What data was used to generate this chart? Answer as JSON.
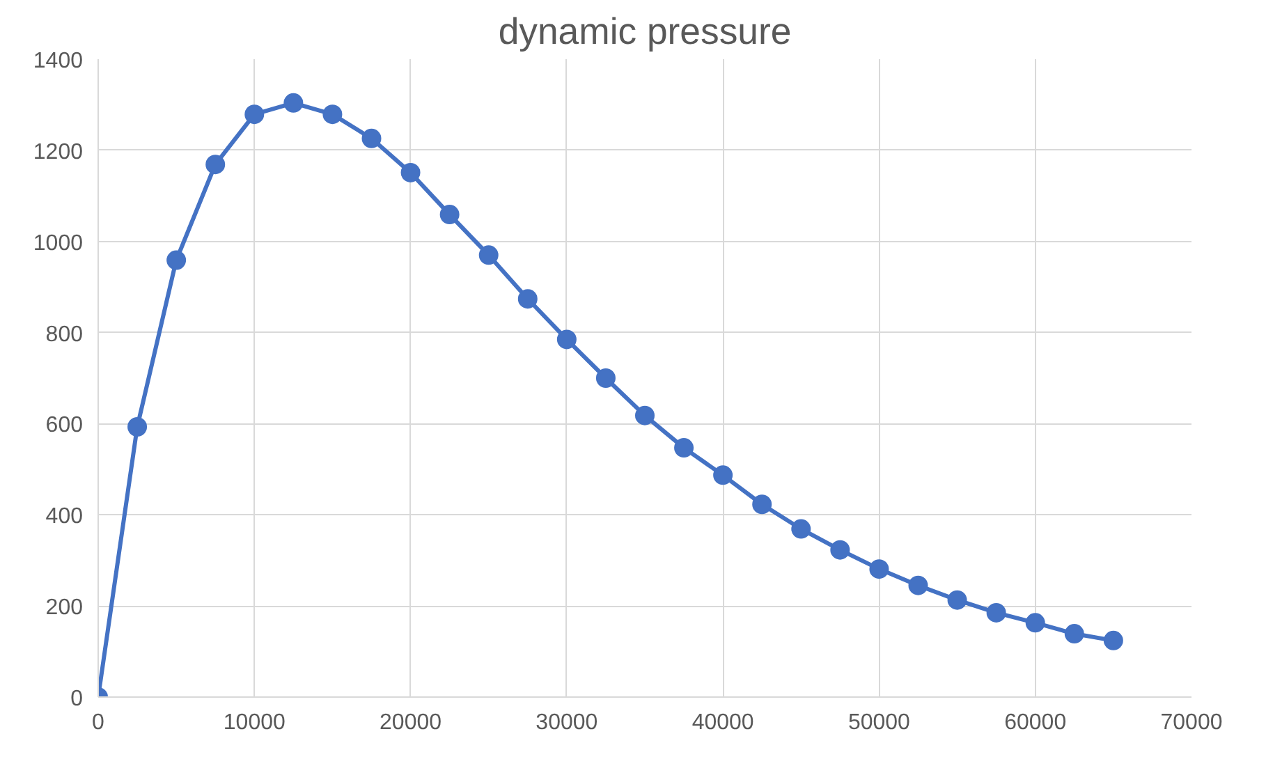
{
  "chart_data": {
    "type": "line",
    "title": "dynamic pressure",
    "x": [
      0,
      2500,
      5000,
      7500,
      10000,
      12500,
      15000,
      17500,
      20000,
      22500,
      25000,
      27500,
      30000,
      32500,
      35000,
      37500,
      40000,
      42500,
      45000,
      47500,
      50000,
      52500,
      55000,
      57500,
      60000,
      62500,
      65000
    ],
    "series": [
      {
        "color": "#4472c4",
        "values": [
          0,
          593,
          959,
          1169,
          1279,
          1304,
          1279,
          1226,
          1151,
          1059,
          970,
          874,
          785,
          700,
          618,
          547,
          487,
          423,
          369,
          323,
          281,
          245,
          213,
          185,
          163,
          139,
          124
        ]
      }
    ],
    "xlim": [
      0,
      70000
    ],
    "xticks": [
      0,
      10000,
      20000,
      30000,
      40000,
      50000,
      60000,
      70000
    ],
    "ylim": [
      0,
      1400
    ],
    "yticks": [
      0,
      200,
      400,
      600,
      800,
      1000,
      1200,
      1400
    ],
    "grid": true,
    "marker": "circle",
    "line_style": "solid"
  }
}
